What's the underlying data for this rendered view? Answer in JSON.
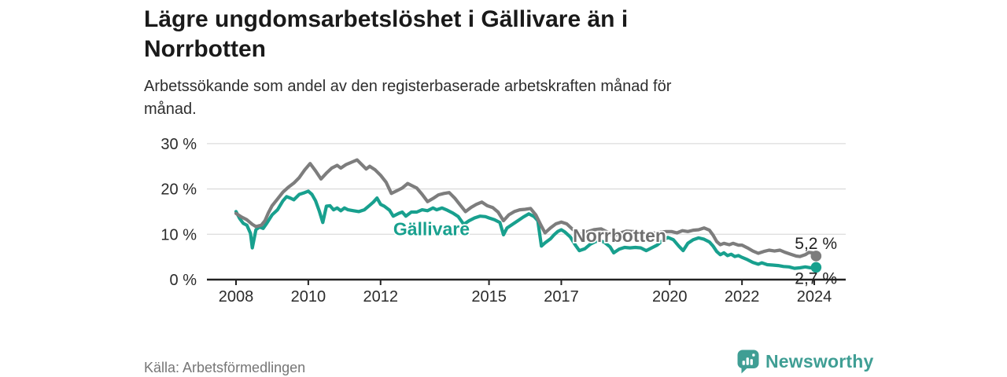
{
  "header": {
    "title_lines": [
      "Lägre ungdomsarbetslöshet i Gällivare än i",
      "Norrbotten"
    ],
    "subtitle_lines": [
      "Arbetssökande som andel av den registerbaserade arbetskraften månad för",
      "månad."
    ]
  },
  "footer": {
    "source": "Källa: Arbetsförmedlingen",
    "brand": "Newsworthy"
  },
  "colors": {
    "gallivare": "#18a08e",
    "norrbotten": "#7d7d7d",
    "norrbotten_label": "#6f6f6f",
    "axis": "#222222",
    "grid": "#dcdcdc",
    "tick_text": "#2b2b2b",
    "end_label_text": "#222222",
    "brand_teal": "#3f9e94"
  },
  "chart_data": {
    "type": "line",
    "title": "Lägre ungdomsarbetslöshet i Gällivare än i Norrbotten",
    "subtitle": "Arbetssökande som andel av den registerbaserade arbetskraften månad för månad.",
    "source": "Källa: Arbetsförmedlingen",
    "xlabel": "",
    "ylabel": "",
    "grid": "horizontal only",
    "legend_position": "inline labels on lines",
    "x_axis": {
      "ticks": [
        2008,
        2010,
        2012,
        2015,
        2017,
        2020,
        2022,
        2024
      ],
      "range": [
        2007.2,
        2024.8
      ]
    },
    "y_axis": {
      "ticks": [
        0,
        10,
        20,
        30
      ],
      "tick_suffix": " %",
      "range": [
        0,
        32
      ]
    },
    "series": [
      {
        "name": "Gällivare",
        "color": "#18a08e",
        "label": {
          "text": "Gällivare",
          "x": 2012.35,
          "y": 9.8,
          "color": "#18a08e"
        },
        "end_label": "2,7 %",
        "end_value": 2.7,
        "end_label_dy": 21,
        "points": [
          [
            2008.0,
            15.0
          ],
          [
            2008.1,
            13.5
          ],
          [
            2008.2,
            12.4
          ],
          [
            2008.3,
            12.0
          ],
          [
            2008.4,
            10.2
          ],
          [
            2008.45,
            7.0
          ],
          [
            2008.55,
            11.0
          ],
          [
            2008.65,
            11.6
          ],
          [
            2008.75,
            11.3
          ],
          [
            2008.85,
            12.4
          ],
          [
            2009.0,
            14.3
          ],
          [
            2009.15,
            15.4
          ],
          [
            2009.3,
            17.4
          ],
          [
            2009.4,
            18.3
          ],
          [
            2009.5,
            18.0
          ],
          [
            2009.6,
            17.6
          ],
          [
            2009.75,
            18.8
          ],
          [
            2009.9,
            19.2
          ],
          [
            2010.0,
            19.5
          ],
          [
            2010.1,
            18.8
          ],
          [
            2010.2,
            17.4
          ],
          [
            2010.3,
            15.2
          ],
          [
            2010.4,
            12.6
          ],
          [
            2010.5,
            16.2
          ],
          [
            2010.6,
            16.3
          ],
          [
            2010.7,
            15.4
          ],
          [
            2010.8,
            15.8
          ],
          [
            2010.9,
            15.2
          ],
          [
            2011.0,
            15.8
          ],
          [
            2011.1,
            15.4
          ],
          [
            2011.25,
            15.2
          ],
          [
            2011.4,
            15.0
          ],
          [
            2011.55,
            15.4
          ],
          [
            2011.7,
            16.4
          ],
          [
            2011.8,
            17.1
          ],
          [
            2011.9,
            18.0
          ],
          [
            2012.0,
            16.6
          ],
          [
            2012.1,
            16.2
          ],
          [
            2012.25,
            15.3
          ],
          [
            2012.35,
            14.0
          ],
          [
            2012.5,
            14.6
          ],
          [
            2012.6,
            14.9
          ],
          [
            2012.7,
            14.0
          ],
          [
            2012.85,
            14.9
          ],
          [
            2013.0,
            14.9
          ],
          [
            2013.15,
            15.4
          ],
          [
            2013.3,
            15.2
          ],
          [
            2013.45,
            15.8
          ],
          [
            2013.55,
            15.4
          ],
          [
            2013.7,
            15.8
          ],
          [
            2013.85,
            15.3
          ],
          [
            2014.0,
            14.7
          ],
          [
            2014.15,
            13.9
          ],
          [
            2014.3,
            12.2
          ],
          [
            2014.45,
            13.0
          ],
          [
            2014.6,
            13.6
          ],
          [
            2014.75,
            14.0
          ],
          [
            2014.9,
            13.9
          ],
          [
            2015.0,
            13.6
          ],
          [
            2015.15,
            13.2
          ],
          [
            2015.3,
            12.6
          ],
          [
            2015.4,
            9.9
          ],
          [
            2015.5,
            11.4
          ],
          [
            2015.65,
            12.2
          ],
          [
            2015.8,
            13.0
          ],
          [
            2015.95,
            13.8
          ],
          [
            2016.1,
            14.5
          ],
          [
            2016.25,
            13.9
          ],
          [
            2016.35,
            13.0
          ],
          [
            2016.45,
            7.4
          ],
          [
            2016.55,
            8.1
          ],
          [
            2016.7,
            9.0
          ],
          [
            2016.8,
            9.9
          ],
          [
            2016.9,
            10.6
          ],
          [
            2017.0,
            11.0
          ],
          [
            2017.1,
            10.5
          ],
          [
            2017.25,
            9.4
          ],
          [
            2017.4,
            7.5
          ],
          [
            2017.5,
            6.4
          ],
          [
            2017.65,
            6.8
          ],
          [
            2017.8,
            7.8
          ],
          [
            2017.95,
            8.4
          ],
          [
            2018.1,
            8.5
          ],
          [
            2018.2,
            8.2
          ],
          [
            2018.35,
            7.2
          ],
          [
            2018.45,
            5.9
          ],
          [
            2018.6,
            6.7
          ],
          [
            2018.75,
            7.1
          ],
          [
            2018.9,
            7.0
          ],
          [
            2019.05,
            7.1
          ],
          [
            2019.2,
            7.0
          ],
          [
            2019.35,
            6.4
          ],
          [
            2019.5,
            7.0
          ],
          [
            2019.65,
            7.6
          ],
          [
            2019.8,
            8.6
          ],
          [
            2019.95,
            9.3
          ],
          [
            2020.1,
            8.8
          ],
          [
            2020.25,
            7.4
          ],
          [
            2020.37,
            6.4
          ],
          [
            2020.5,
            8.0
          ],
          [
            2020.65,
            8.8
          ],
          [
            2020.8,
            9.2
          ],
          [
            2020.95,
            8.9
          ],
          [
            2021.1,
            8.3
          ],
          [
            2021.2,
            7.4
          ],
          [
            2021.3,
            6.2
          ],
          [
            2021.4,
            5.5
          ],
          [
            2021.5,
            5.9
          ],
          [
            2021.6,
            5.3
          ],
          [
            2021.7,
            5.6
          ],
          [
            2021.8,
            5.1
          ],
          [
            2021.9,
            5.3
          ],
          [
            2022.0,
            4.9
          ],
          [
            2022.15,
            4.4
          ],
          [
            2022.3,
            3.8
          ],
          [
            2022.45,
            3.4
          ],
          [
            2022.55,
            3.7
          ],
          [
            2022.7,
            3.3
          ],
          [
            2022.85,
            3.2
          ],
          [
            2023.0,
            3.1
          ],
          [
            2023.15,
            2.9
          ],
          [
            2023.3,
            2.8
          ],
          [
            2023.45,
            2.5
          ],
          [
            2023.6,
            2.6
          ],
          [
            2023.75,
            2.8
          ],
          [
            2023.9,
            2.6
          ],
          [
            2024.05,
            2.7
          ]
        ]
      },
      {
        "name": "Norrbotten",
        "color": "#7d7d7d",
        "label": {
          "text": "Norrbotten",
          "x": 2017.32,
          "y": 8.3,
          "color": "#6f6f6f"
        },
        "end_label": "5,2 %",
        "end_value": 5.2,
        "end_label_dy": -9,
        "points": [
          [
            2008.0,
            14.6
          ],
          [
            2008.15,
            13.8
          ],
          [
            2008.3,
            13.2
          ],
          [
            2008.45,
            12.2
          ],
          [
            2008.55,
            11.7
          ],
          [
            2008.7,
            12.0
          ],
          [
            2008.8,
            13.0
          ],
          [
            2008.9,
            14.8
          ],
          [
            2009.0,
            16.3
          ],
          [
            2009.15,
            17.8
          ],
          [
            2009.3,
            19.3
          ],
          [
            2009.45,
            20.4
          ],
          [
            2009.6,
            21.3
          ],
          [
            2009.75,
            22.5
          ],
          [
            2009.9,
            24.2
          ],
          [
            2010.05,
            25.6
          ],
          [
            2010.2,
            24.0
          ],
          [
            2010.35,
            22.2
          ],
          [
            2010.5,
            23.5
          ],
          [
            2010.65,
            24.6
          ],
          [
            2010.8,
            25.2
          ],
          [
            2010.9,
            24.6
          ],
          [
            2011.05,
            25.4
          ],
          [
            2011.2,
            25.9
          ],
          [
            2011.35,
            26.4
          ],
          [
            2011.5,
            25.2
          ],
          [
            2011.6,
            24.4
          ],
          [
            2011.7,
            25.0
          ],
          [
            2011.85,
            24.2
          ],
          [
            2012.0,
            23.0
          ],
          [
            2012.15,
            21.5
          ],
          [
            2012.3,
            19.0
          ],
          [
            2012.45,
            19.6
          ],
          [
            2012.6,
            20.2
          ],
          [
            2012.75,
            21.2
          ],
          [
            2012.9,
            20.6
          ],
          [
            2013.0,
            20.2
          ],
          [
            2013.15,
            18.8
          ],
          [
            2013.3,
            17.2
          ],
          [
            2013.45,
            17.9
          ],
          [
            2013.6,
            18.7
          ],
          [
            2013.75,
            19.0
          ],
          [
            2013.9,
            19.2
          ],
          [
            2014.05,
            18.0
          ],
          [
            2014.2,
            16.5
          ],
          [
            2014.35,
            15.0
          ],
          [
            2014.5,
            15.9
          ],
          [
            2014.65,
            16.6
          ],
          [
            2014.8,
            17.1
          ],
          [
            2014.95,
            16.3
          ],
          [
            2015.1,
            15.9
          ],
          [
            2015.25,
            14.9
          ],
          [
            2015.4,
            13.0
          ],
          [
            2015.55,
            14.3
          ],
          [
            2015.7,
            15.0
          ],
          [
            2015.85,
            15.4
          ],
          [
            2016.0,
            15.5
          ],
          [
            2016.15,
            15.7
          ],
          [
            2016.3,
            14.2
          ],
          [
            2016.45,
            11.8
          ],
          [
            2016.55,
            10.3
          ],
          [
            2016.7,
            11.4
          ],
          [
            2016.85,
            12.3
          ],
          [
            2017.0,
            12.7
          ],
          [
            2017.15,
            12.3
          ],
          [
            2017.3,
            11.2
          ],
          [
            2017.5,
            9.9
          ],
          [
            2017.7,
            10.5
          ],
          [
            2017.9,
            11.0
          ],
          [
            2018.1,
            11.2
          ],
          [
            2018.3,
            10.4
          ],
          [
            2018.45,
            9.6
          ],
          [
            2018.6,
            10.2
          ],
          [
            2018.8,
            10.7
          ],
          [
            2019.0,
            10.6
          ],
          [
            2019.2,
            10.3
          ],
          [
            2019.35,
            10.0
          ],
          [
            2019.5,
            10.2
          ],
          [
            2019.7,
            10.4
          ],
          [
            2019.9,
            10.6
          ],
          [
            2020.05,
            10.6
          ],
          [
            2020.2,
            10.3
          ],
          [
            2020.35,
            10.8
          ],
          [
            2020.5,
            10.6
          ],
          [
            2020.65,
            10.9
          ],
          [
            2020.8,
            11.0
          ],
          [
            2020.95,
            11.4
          ],
          [
            2021.1,
            10.9
          ],
          [
            2021.2,
            9.8
          ],
          [
            2021.3,
            8.4
          ],
          [
            2021.4,
            7.7
          ],
          [
            2021.5,
            8.0
          ],
          [
            2021.65,
            7.7
          ],
          [
            2021.75,
            8.0
          ],
          [
            2021.9,
            7.6
          ],
          [
            2022.0,
            7.6
          ],
          [
            2022.15,
            7.0
          ],
          [
            2022.3,
            6.3
          ],
          [
            2022.45,
            5.8
          ],
          [
            2022.6,
            6.2
          ],
          [
            2022.75,
            6.5
          ],
          [
            2022.9,
            6.3
          ],
          [
            2023.05,
            6.5
          ],
          [
            2023.2,
            6.0
          ],
          [
            2023.35,
            5.6
          ],
          [
            2023.5,
            5.2
          ],
          [
            2023.6,
            5.1
          ],
          [
            2023.75,
            5.5
          ],
          [
            2023.85,
            6.0
          ],
          [
            2023.95,
            5.9
          ],
          [
            2024.05,
            5.2
          ]
        ]
      }
    ]
  }
}
